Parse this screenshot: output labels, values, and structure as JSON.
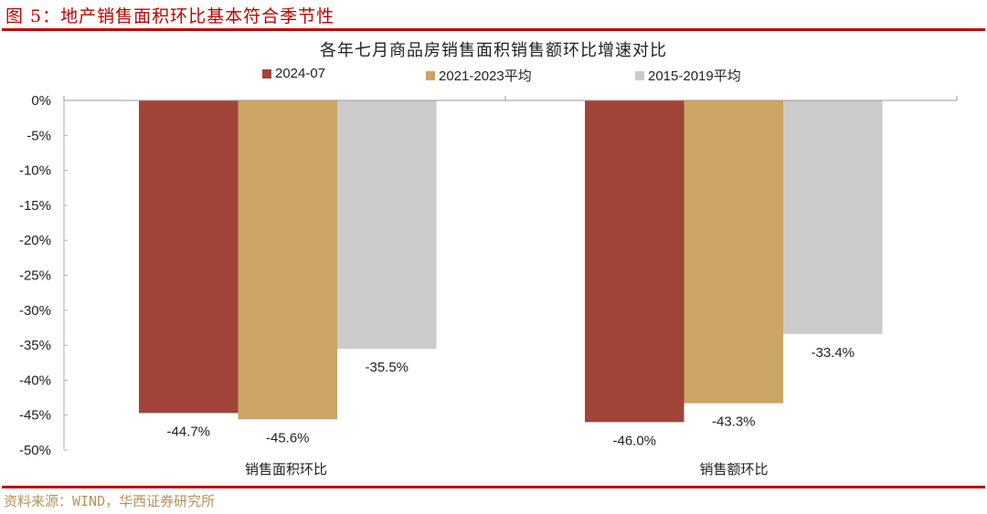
{
  "figure": {
    "title": "图 5：地产销售面积环比基本符合季节性",
    "source": "资料来源：WIND，华西证券研究所"
  },
  "colors": {
    "accent_red": "#c00000",
    "series_2024": "#a0443a",
    "series_2021_2023": "#cca463",
    "series_2015_2019": "#cbcbcb",
    "source_text": "#b8925a"
  },
  "chart_data": {
    "type": "bar",
    "title": "各年七月商品房销售面积销售额环比增速对比",
    "xlabel": "",
    "ylabel": "",
    "categories": [
      "销售面积环比",
      "销售额环比"
    ],
    "series": [
      {
        "name": "2024-07",
        "color": "#a0443a",
        "values": [
          -44.7,
          -46.0
        ],
        "labels": [
          "-44.7%",
          "-46.0%"
        ]
      },
      {
        "name": "2021-2023平均",
        "color": "#cca463",
        "values": [
          -45.6,
          -43.3
        ],
        "labels": [
          "-45.6%",
          "-43.3%"
        ]
      },
      {
        "name": "2015-2019平均",
        "color": "#cbcbcb",
        "values": [
          -35.5,
          -33.4
        ],
        "labels": [
          "-35.5%",
          "-33.4%"
        ]
      }
    ],
    "ylim": [
      -50,
      0
    ],
    "yticks": [
      "0%",
      "-5%",
      "-10%",
      "-15%",
      "-20%",
      "-25%",
      "-30%",
      "-35%",
      "-40%",
      "-45%",
      "-50%"
    ],
    "grid": false,
    "legend_position": "top",
    "data_labels": true
  }
}
